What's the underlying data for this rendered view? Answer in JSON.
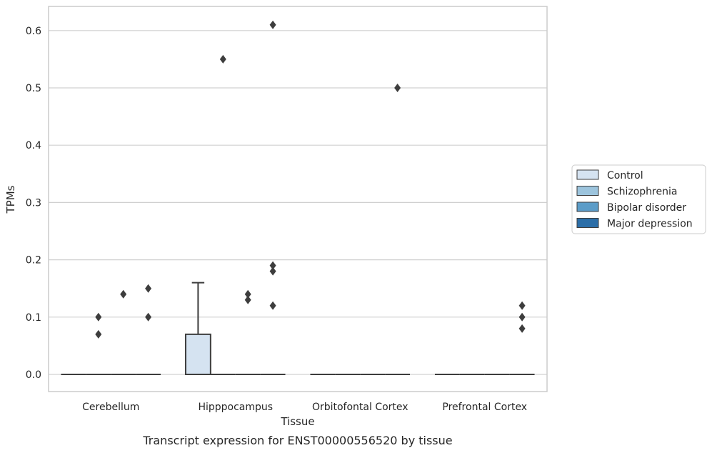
{
  "chart_data": {
    "type": "box",
    "title": "Transcript expression for ENST00000556520 by tissue",
    "xlabel": "Tissue",
    "ylabel": "TPMs",
    "categories": [
      "Cerebellum",
      "Hipppocampus",
      "Orbitofontal Cortex",
      "Prefrontal Cortex"
    ],
    "ylim": [
      -0.03,
      0.64
    ],
    "yticks": [
      "0.0",
      "0.1",
      "0.2",
      "0.3",
      "0.4",
      "0.5",
      "0.6"
    ],
    "grid": true,
    "legend_position": "right",
    "series": [
      {
        "name": "Control",
        "color": "#d5e3f1",
        "boxes": [
          {
            "category": "Cerebellum",
            "q1": 0,
            "median": 0,
            "q3": 0,
            "whisker_low": 0,
            "whisker_high": 0,
            "outliers": []
          },
          {
            "category": "Hipppocampus",
            "q1": 0,
            "median": 0,
            "q3": 0.07,
            "whisker_low": 0,
            "whisker_high": 0.16,
            "outliers": []
          },
          {
            "category": "Orbitofontal Cortex",
            "q1": 0,
            "median": 0,
            "q3": 0,
            "whisker_low": 0,
            "whisker_high": 0,
            "outliers": []
          },
          {
            "category": "Prefrontal Cortex",
            "q1": 0,
            "median": 0,
            "q3": 0,
            "whisker_low": 0,
            "whisker_high": 0,
            "outliers": []
          }
        ]
      },
      {
        "name": "Schizophrenia",
        "color": "#9cc4dd",
        "boxes": [
          {
            "category": "Cerebellum",
            "q1": 0,
            "median": 0,
            "q3": 0,
            "whisker_low": 0,
            "whisker_high": 0,
            "outliers": [
              0.07,
              0.1
            ]
          },
          {
            "category": "Hipppocampus",
            "q1": 0,
            "median": 0,
            "q3": 0,
            "whisker_low": 0,
            "whisker_high": 0,
            "outliers": [
              0.55
            ]
          },
          {
            "category": "Orbitofontal Cortex",
            "q1": 0,
            "median": 0,
            "q3": 0,
            "whisker_low": 0,
            "whisker_high": 0,
            "outliers": []
          },
          {
            "category": "Prefrontal Cortex",
            "q1": 0,
            "median": 0,
            "q3": 0,
            "whisker_low": 0,
            "whisker_high": 0,
            "outliers": []
          }
        ]
      },
      {
        "name": "Bipolar disorder",
        "color": "#5b9cc8",
        "boxes": [
          {
            "category": "Cerebellum",
            "q1": 0,
            "median": 0,
            "q3": 0,
            "whisker_low": 0,
            "whisker_high": 0,
            "outliers": [
              0.14
            ]
          },
          {
            "category": "Hipppocampus",
            "q1": 0,
            "median": 0,
            "q3": 0,
            "whisker_low": 0,
            "whisker_high": 0,
            "outliers": [
              0.13,
              0.14
            ]
          },
          {
            "category": "Orbitofontal Cortex",
            "q1": 0,
            "median": 0,
            "q3": 0,
            "whisker_low": 0,
            "whisker_high": 0,
            "outliers": []
          },
          {
            "category": "Prefrontal Cortex",
            "q1": 0,
            "median": 0,
            "q3": 0,
            "whisker_low": 0,
            "whisker_high": 0,
            "outliers": []
          }
        ]
      },
      {
        "name": "Major depression",
        "color": "#2b6ea8",
        "boxes": [
          {
            "category": "Cerebellum",
            "q1": 0,
            "median": 0,
            "q3": 0,
            "whisker_low": 0,
            "whisker_high": 0,
            "outliers": [
              0.1,
              0.15
            ]
          },
          {
            "category": "Hipppocampus",
            "q1": 0,
            "median": 0,
            "q3": 0,
            "whisker_low": 0,
            "whisker_high": 0,
            "outliers": [
              0.12,
              0.61
            ]
          },
          {
            "category": "Orbitofontal Cortex",
            "q1": 0,
            "median": 0,
            "q3": 0,
            "whisker_low": 0,
            "whisker_high": 0,
            "outliers": [
              0.5
            ]
          },
          {
            "category": "Prefrontal Cortex",
            "q1": 0,
            "median": 0,
            "q3": 0,
            "whisker_low": 0,
            "whisker_high": 0,
            "outliers": [
              0.08,
              0.1,
              0.12
            ]
          }
        ]
      }
    ],
    "extra_outliers": [
      {
        "category": "Hipppocampus",
        "series": "Major depression",
        "values": [
          0.18,
          0.19
        ]
      }
    ]
  }
}
